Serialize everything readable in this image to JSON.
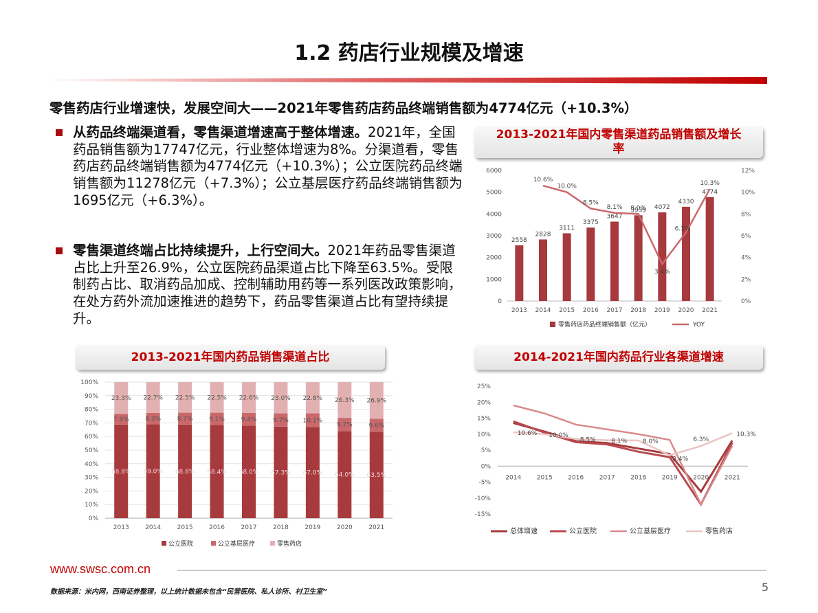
{
  "page": {
    "title": "1.2 药店行业规模及增速",
    "headline": "零售药店行业增速快，发展空间大——2021年零售药店药品终端销售额为4774亿元（+10.3%）",
    "bullets": [
      {
        "bold": "从药品终端渠道看，零售渠道增速高于整体增速。",
        "text": "2021年，全国药品销售额为17747亿元，行业整体增速为8%。分渠道看，零售药店药品终端销售额为4774亿元（+10.3%）；公立医院药品终端销售额为11278亿元（+7.3%）；公立基层医疗药品终端销售额为1695亿元（+6.3%）。"
      },
      {
        "bold": "零售渠道终端占比持续提升，上行空间大。",
        "text": "2021年药品零售渠道占比上升至26.9%，公立医院药品渠道占比下降至63.5%。受限制药占比、取消药品加成、控制辅助用药等一系列医改政策影响，在处方药外流加速推进的趋势下，药品零售渠道占比有望持续提升。"
      }
    ],
    "footer_url": "www.swsc.com.cn",
    "footer_note": "数据来源：米内网，西南证券整理，以上统计数据未包含“民营医院、私人诊所、村卫生室”",
    "page_number": "5"
  },
  "colors": {
    "brand_red": "#c00000",
    "dark_red": "#a63a3d",
    "mid_red": "#c9696c",
    "light_pink": "#e3b0b1"
  },
  "chart_data": [
    {
      "type": "bar",
      "title": "2013-2021年国内零售渠道药品销售额及增长率",
      "categories": [
        "2013",
        "2014",
        "2015",
        "2016",
        "2017",
        "2018",
        "2019",
        "2020",
        "2021"
      ],
      "series": [
        {
          "name": "零售药店药品终端销售额（亿元）",
          "type": "bar",
          "axis": "left",
          "values": [
            2558,
            2828,
            3111,
            3375,
            3647,
            3939,
            4072,
            4330,
            4774
          ],
          "labels": [
            "2558",
            "2828",
            "3111",
            "3375",
            "3647",
            "3939",
            "4072",
            "4330",
            "4774"
          ]
        },
        {
          "name": "YOY",
          "type": "line",
          "axis": "right",
          "values": [
            null,
            10.6,
            10.0,
            8.5,
            8.1,
            8.0,
            3.4,
            6.3,
            10.3
          ],
          "labels": [
            "",
            "10.6%",
            "10.0%",
            "8.5%",
            "8.1%",
            "8.0%",
            "3.4%",
            "6.3%",
            "10.3%"
          ]
        }
      ],
      "ylim": [
        0,
        6000
      ],
      "y_ticks": [
        "0",
        "1000",
        "2000",
        "3000",
        "4000",
        "5000",
        "6000"
      ],
      "y2lim": [
        0,
        12
      ],
      "y2_ticks": [
        "0%",
        "2%",
        "4%",
        "6%",
        "8%",
        "10%",
        "12%"
      ],
      "legend": "bottom"
    },
    {
      "type": "bar",
      "stacked": true,
      "title": "2013-2021年国内药品销售渠道占比",
      "categories": [
        "2013",
        "2014",
        "2015",
        "2016",
        "2017",
        "2018",
        "2019",
        "2020",
        "2021"
      ],
      "series": [
        {
          "name": "公立医院",
          "values": [
            68.8,
            69.0,
            68.8,
            68.4,
            68.0,
            67.3,
            67.0,
            64.0,
            63.5
          ],
          "labels": [
            "68.8%",
            "69.0%",
            "68.8%",
            "68.4%",
            "68.0%",
            "67.3%",
            "67.0%",
            "64.0%",
            "63.5%"
          ]
        },
        {
          "name": "公立基层医疗",
          "values": [
            7.9,
            8.3,
            8.7,
            9.1,
            9.4,
            9.7,
            10.1,
            9.7,
            9.6
          ],
          "labels": [
            "7.9%",
            "8.3%",
            "8.7%",
            "9.1%",
            "9.4%",
            "9.7%",
            "10.1%",
            "9.7%",
            "9.6%"
          ]
        },
        {
          "name": "零售药店",
          "values": [
            23.3,
            22.7,
            22.5,
            22.5,
            22.6,
            23.0,
            22.8,
            26.3,
            26.9
          ],
          "labels": [
            "23.3%",
            "22.7%",
            "22.5%",
            "22.5%",
            "22.6%",
            "23.0%",
            "22.8%",
            "26.3%",
            "26.9%"
          ]
        }
      ],
      "ylim": [
        0,
        100
      ],
      "y_ticks": [
        "0%",
        "10%",
        "20%",
        "30%",
        "40%",
        "50%",
        "60%",
        "70%",
        "80%",
        "90%",
        "100%"
      ],
      "legend": "bottom"
    },
    {
      "type": "line",
      "title": "2014-2021年国内药品行业各渠道增速",
      "categories": [
        "2014",
        "2015",
        "2016",
        "2017",
        "2018",
        "2019",
        "2020",
        "2021"
      ],
      "series": [
        {
          "name": "总体增速",
          "values": [
            13.5,
            10.8,
            7.8,
            7.2,
            5.5,
            3.8,
            -8.0,
            8.0
          ]
        },
        {
          "name": "公立医院",
          "values": [
            14.0,
            10.5,
            7.5,
            6.8,
            4.5,
            2.8,
            -12.0,
            7.3
          ]
        },
        {
          "name": "公立基层医疗",
          "values": [
            19.0,
            16.5,
            13.0,
            11.5,
            10.0,
            8.2,
            -12.0,
            6.3
          ]
        },
        {
          "name": "零售药店",
          "values": [
            10.6,
            10.0,
            8.5,
            8.1,
            8.0,
            3.4,
            6.3,
            10.3
          ],
          "labels": [
            "10.6%",
            "10.0%",
            "8.5%",
            "8.1%",
            "8.0%",
            "3.4%",
            "6.3%",
            "10.3%"
          ]
        }
      ],
      "ylim": [
        -15,
        25
      ],
      "y_ticks": [
        "25%",
        "20%",
        "15%",
        "10%",
        "5%",
        "0%",
        "-5%",
        "-10%",
        "-15%"
      ],
      "legend": "bottom"
    }
  ]
}
